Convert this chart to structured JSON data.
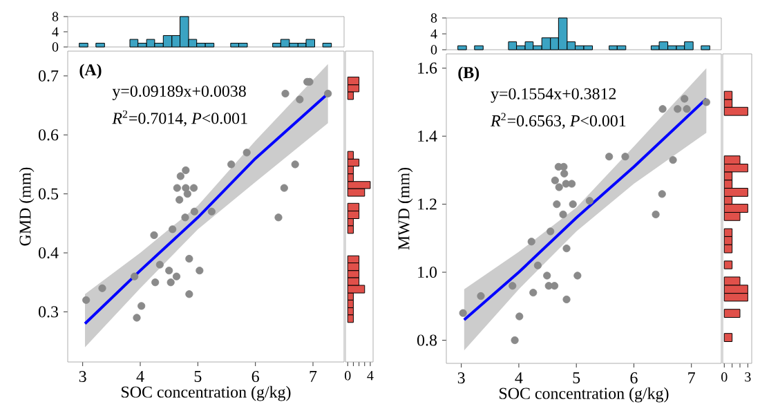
{
  "chart_data": [
    {
      "type": "scatter",
      "xlabel": "SOC concentration (g/kg)",
      "ylabel": "GMD (mm)",
      "annotations": [
        "(A)",
        "y=0.09189x+0.0038",
        "*R*$^{2}$=0.7014, *P*<0.001"
      ],
      "xlim": [
        2.74,
        7.54
      ],
      "ylim": [
        0.215,
        0.742
      ],
      "xticks": [
        3,
        4,
        5,
        6,
        7
      ],
      "yticks": [
        0.3,
        0.4,
        0.5,
        0.6,
        0.7
      ],
      "series": [
        {
          "type": "scatter",
          "marker": "circle",
          "color": "#8a8a8a",
          "x": [
            3.06,
            3.34,
            3.9,
            3.94,
            4.02,
            4.24,
            4.26,
            4.34,
            4.5,
            4.53,
            4.56,
            4.63,
            4.64,
            4.68,
            4.7,
            4.78,
            4.79,
            4.79,
            4.82,
            4.85,
            4.85,
            4.93,
            4.94,
            5.03,
            5.24,
            5.58,
            5.85,
            6.4,
            6.5,
            6.52,
            6.69,
            6.77,
            6.9,
            6.94,
            7.26
          ],
          "values": [
            0.32,
            0.34,
            0.36,
            0.29,
            0.31,
            0.43,
            0.35,
            0.38,
            0.37,
            0.35,
            0.44,
            0.36,
            0.51,
            0.49,
            0.53,
            0.46,
            0.54,
            0.51,
            0.5,
            0.39,
            0.33,
            0.51,
            0.47,
            0.37,
            0.47,
            0.55,
            0.57,
            0.46,
            0.51,
            0.67,
            0.55,
            0.66,
            0.69,
            0.69,
            0.67
          ]
        },
        {
          "type": "line",
          "color": "#0000ff",
          "x": [
            3.04,
            4,
            5,
            6,
            7.26
          ],
          "values": [
            0.28,
            0.37,
            0.46,
            0.56,
            0.67
          ],
          "lower": [
            0.24,
            0.34,
            0.44,
            0.52,
            0.62
          ],
          "upper": [
            0.33,
            0.4,
            0.48,
            0.59,
            0.72
          ]
        }
      ]
    },
    {
      "type": "histogram",
      "color": "#3ba3c3",
      "bins": [
        2.94,
        3.09,
        3.23,
        3.38,
        3.82,
        3.96,
        4.11,
        4.25,
        4.4,
        4.55,
        4.69,
        4.84,
        4.98,
        5.13,
        5.28,
        5.57,
        5.71,
        5.86,
        6.3,
        6.44,
        6.59,
        6.74,
        6.88,
        7.03,
        7.17,
        7.32
      ],
      "values": [
        1,
        0,
        1,
        0,
        2,
        1,
        2,
        1,
        3,
        3,
        8,
        2,
        1,
        1,
        0,
        1,
        1,
        0,
        1,
        2,
        1,
        1,
        2,
        0,
        1
      ],
      "xlim": [
        2.74,
        7.54
      ],
      "ylim": [
        0,
        8
      ],
      "yticks": [
        0,
        4,
        8
      ],
      "tick_labels": "y"
    },
    {
      "type": "histogram",
      "orientation": "horizontal",
      "color": "#e0504a",
      "bins": [
        0.282,
        0.295,
        0.307,
        0.32,
        0.332,
        0.345,
        0.358,
        0.37,
        0.383,
        0.395,
        0.433,
        0.446,
        0.458,
        0.471,
        0.484,
        0.496,
        0.509,
        0.521,
        0.534,
        0.547,
        0.559,
        0.572,
        0.66,
        0.673,
        0.685,
        0.698
      ],
      "values": [
        1,
        1,
        1,
        1,
        3,
        2,
        2,
        2,
        2,
        0,
        1,
        1,
        2,
        2,
        0,
        3,
        4,
        1,
        1,
        2,
        1,
        0,
        1,
        2,
        2
      ],
      "xlim": [
        -0.4,
        4.5
      ],
      "xticks": [
        0,
        {
          "value": 1,
          "label": null
        },
        {
          "value": 2,
          "label": null
        },
        {
          "value": 3,
          "label": null
        },
        4
      ],
      "ylim": [
        0.215,
        0.742
      ],
      "tick_labels": "x"
    },
    {
      "type": "scatter",
      "xlabel": "SOC concentration (g/kg)",
      "ylabel": "MWD (mm)",
      "annotations": [
        "(B)",
        "y=0.1554x+0.3812",
        "*R*$^{2}$=0.6563, *P*<0.001"
      ],
      "xlim": [
        2.74,
        7.52
      ],
      "ylim": [
        0.732,
        1.642
      ],
      "xticks": [
        3,
        4,
        5,
        6,
        7
      ],
      "yticks": [
        0.8,
        {
          "value": 1,
          "label": "1.0"
        },
        1.2,
        1.4,
        1.6
      ],
      "series": [
        {
          "type": "scatter",
          "marker": "circle",
          "color": "#8a8a8a",
          "x": [
            3.03,
            3.34,
            3.89,
            3.93,
            4.01,
            4.22,
            4.25,
            4.33,
            4.49,
            4.52,
            4.55,
            4.62,
            4.63,
            4.66,
            4.69,
            4.7,
            4.77,
            4.78,
            4.79,
            4.82,
            4.83,
            4.83,
            4.92,
            4.94,
            5.02,
            5.23,
            5.57,
            5.85,
            6.38,
            6.49,
            6.5,
            6.68,
            6.76,
            6.88,
            6.92,
            7.26
          ],
          "values": [
            0.88,
            0.93,
            0.96,
            0.8,
            0.87,
            1.09,
            0.94,
            1.02,
            0.99,
            0.96,
            1.12,
            0.96,
            1.27,
            1.2,
            1.31,
            1.25,
            1.17,
            1.31,
            1.29,
            1.26,
            1.07,
            0.92,
            1.26,
            1.2,
            0.99,
            1.21,
            1.34,
            1.34,
            1.17,
            1.23,
            1.48,
            1.33,
            1.48,
            1.51,
            1.48,
            1.5
          ]
        },
        {
          "type": "line",
          "color": "#0000ff",
          "x": [
            3.05,
            4,
            5,
            6,
            7.26
          ],
          "values": [
            0.86,
            1.0,
            1.16,
            1.31,
            1.51
          ],
          "lower": [
            0.77,
            0.95,
            1.12,
            1.26,
            1.41
          ],
          "upper": [
            0.95,
            1.06,
            1.19,
            1.37,
            1.6
          ]
        }
      ]
    },
    {
      "type": "histogram",
      "color": "#3ba3c3",
      "bins": [
        2.94,
        3.09,
        3.23,
        3.38,
        3.82,
        3.96,
        4.11,
        4.25,
        4.4,
        4.55,
        4.69,
        4.84,
        4.98,
        5.13,
        5.28,
        5.57,
        5.71,
        5.86,
        6.3,
        6.44,
        6.59,
        6.74,
        6.88,
        7.03,
        7.17,
        7.32
      ],
      "values": [
        1,
        0,
        1,
        0,
        2,
        1,
        2,
        1,
        3,
        3,
        8,
        2,
        1,
        1,
        0,
        1,
        1,
        0,
        1,
        2,
        1,
        1,
        2,
        0,
        1
      ],
      "xlim": [
        2.74,
        7.52
      ],
      "ylim": [
        0,
        8
      ],
      "yticks": [
        0,
        4,
        8
      ],
      "tick_labels": "y"
    },
    {
      "type": "histogram",
      "orientation": "horizontal",
      "color": "#e0504a",
      "bins": [
        0.796,
        0.82,
        0.867,
        0.891,
        0.915,
        0.938,
        0.962,
        0.986,
        1.01,
        1.033,
        1.057,
        1.081,
        1.105,
        1.128,
        1.152,
        1.176,
        1.2,
        1.223,
        1.247,
        1.271,
        1.295,
        1.318,
        1.342,
        1.461,
        1.485,
        1.508,
        1.532
      ],
      "values": [
        1,
        0,
        2,
        0,
        3,
        3,
        2,
        0,
        1,
        0,
        1,
        1,
        1,
        0,
        2,
        3,
        1,
        3,
        1,
        1,
        3,
        2,
        0,
        3,
        1,
        1
      ],
      "xlim": [
        -0.2,
        3.5
      ],
      "xticks": [
        0,
        {
          "value": 1,
          "label": null
        },
        {
          "value": 2,
          "label": null
        },
        3
      ],
      "ylim": [
        0.732,
        1.642
      ],
      "tick_labels": "x"
    }
  ]
}
